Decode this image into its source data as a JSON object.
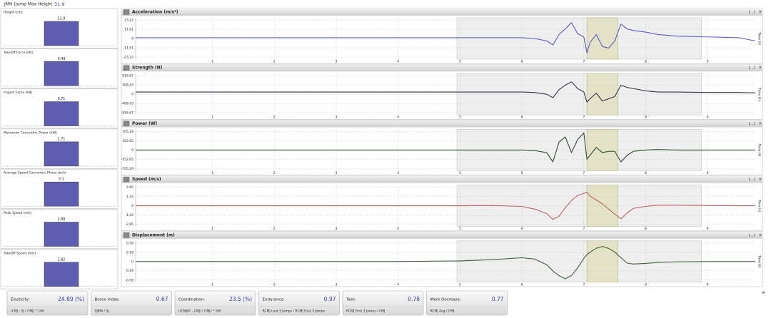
{
  "header": {
    "label": "JMH (Jump Max Height",
    "value": "31.9"
  },
  "summary": [
    {
      "label": "Height (cm)",
      "value": 31.9
    },
    {
      "label": "TakeOff Force (kN)",
      "value": 0.49
    },
    {
      "label": "Impact Force (kN)",
      "value": 0.71
    },
    {
      "label": "Maximum Concentric Power (kW)",
      "value": 2.71
    },
    {
      "label": "Average Speed Concentric Phase (m/s)",
      "value": 0.1
    },
    {
      "label": "Peak Speed (m/s)",
      "value": 2.88
    },
    {
      "label": "TakeOff Speed (m/s)",
      "value": 2.82
    }
  ],
  "panel_menu": "(...)",
  "chart_data": [
    {
      "type": "line",
      "title": "Acceleration (m/s²)",
      "x_label": "Time (t)",
      "x": [
        -0.24,
        1,
        2,
        3,
        4,
        5,
        5.5,
        6,
        6.2,
        6.4,
        6.5,
        6.6,
        6.7,
        6.8,
        6.9,
        7.0,
        7.05,
        7.1,
        7.2,
        7.3,
        7.4,
        7.5,
        7.6,
        7.7,
        7.8,
        8.0,
        8.2,
        8.5,
        9,
        9.5,
        9.77
      ],
      "values": [
        1,
        1,
        1,
        1,
        1,
        1,
        1,
        1,
        0,
        -3,
        -8,
        5,
        12,
        20,
        6,
        2,
        -18,
        -5,
        5,
        -10,
        -12,
        -3,
        18,
        12,
        10,
        8,
        5,
        3,
        2,
        1,
        -3
      ],
      "color": "#5b5bc8",
      "xlim": [
        -0.24,
        9.77
      ],
      "xticks": [
        1,
        2,
        3,
        4,
        5,
        6,
        7,
        8,
        9
      ],
      "ylim": [
        -23.22,
        23.22
      ],
      "yticks": [
        23.22,
        11.61,
        0,
        -11.61,
        -23.22
      ],
      "window": [
        4.95,
        8.9
      ],
      "highlight": [
        7.05,
        7.55
      ],
      "grid": true
    },
    {
      "type": "line",
      "title": "Strength (N)",
      "x_label": "Time (t)",
      "x": [
        -0.24,
        1,
        2,
        3,
        4,
        5,
        5.5,
        6,
        6.2,
        6.4,
        6.5,
        6.6,
        6.7,
        6.8,
        6.9,
        7.0,
        7.05,
        7.1,
        7.2,
        7.3,
        7.4,
        7.5,
        7.6,
        7.7,
        7.8,
        8.0,
        8.2,
        8.5,
        9,
        9.5,
        9.77
      ],
      "values": [
        100,
        100,
        100,
        100,
        100,
        100,
        100,
        100,
        80,
        0,
        -150,
        200,
        400,
        550,
        250,
        100,
        -350,
        -200,
        50,
        -300,
        -200,
        -100,
        400,
        300,
        250,
        150,
        100,
        100,
        80,
        80,
        60
      ],
      "color": "#3a3550",
      "xlim": [
        -0.24,
        9.77
      ],
      "xticks": [
        1,
        2,
        3,
        4,
        5,
        6,
        7,
        8,
        9
      ],
      "ylim": [
        -816.87,
        816.87
      ],
      "yticks": [
        816.87,
        408.43,
        0,
        -408.43,
        -816.87
      ],
      "window": [
        4.95,
        8.9
      ],
      "highlight": [
        7.05,
        7.55
      ],
      "grid": true
    },
    {
      "type": "line",
      "title": "Power (W)",
      "x_label": "Time (t)",
      "x": [
        -0.24,
        1,
        2,
        3,
        4,
        5,
        5.5,
        6,
        6.2,
        6.4,
        6.5,
        6.6,
        6.7,
        6.8,
        6.9,
        7.0,
        7.05,
        7.1,
        7.2,
        7.3,
        7.4,
        7.5,
        7.6,
        7.7,
        7.8,
        8.0,
        8.2,
        8.5,
        9,
        9.5,
        9.77
      ],
      "values": [
        0,
        0,
        0,
        0,
        0,
        0,
        0,
        0,
        -20,
        -100,
        -450,
        300,
        500,
        -100,
        400,
        650,
        -350,
        -200,
        100,
        -100,
        -50,
        -50,
        -450,
        -200,
        -50,
        0,
        20,
        0,
        0,
        0,
        0
      ],
      "color": "#2f4a2f",
      "xlim": [
        -0.24,
        9.77
      ],
      "xticks": [
        1,
        2,
        3,
        4,
        5,
        6,
        7,
        8,
        9
      ],
      "ylim": [
        -705.29,
        705.29
      ],
      "yticks": [
        705.29,
        352.65,
        0,
        -352.65,
        -705.29
      ],
      "window": [
        4.95,
        8.9
      ],
      "highlight": [
        7.05,
        7.55
      ],
      "grid": true
    },
    {
      "type": "line",
      "title": "Speed (m/s)",
      "x_label": "Time (t)",
      "x": [
        -0.24,
        1,
        2,
        3,
        4,
        5,
        5.5,
        6,
        6.2,
        6.4,
        6.5,
        6.6,
        6.7,
        6.8,
        6.9,
        7.0,
        7.05,
        7.1,
        7.2,
        7.3,
        7.4,
        7.5,
        7.6,
        7.7,
        7.8,
        8.0,
        8.2,
        8.5,
        9,
        9.5,
        9.77
      ],
      "values": [
        0,
        0,
        0,
        0,
        0,
        0,
        0.05,
        -0.1,
        -0.5,
        -1.2,
        -2.1,
        -1.6,
        -0.3,
        0.8,
        1.6,
        1.9,
        2.1,
        1.5,
        0.9,
        0.3,
        -0.5,
        -1.3,
        -2.0,
        -1.1,
        -0.4,
        -0.1,
        0.1,
        0.1,
        0.05,
        0,
        0
      ],
      "color": "#c06060",
      "xlim": [
        -0.24,
        9.77
      ],
      "xticks": [
        1,
        2,
        3,
        4,
        5,
        6,
        7,
        8,
        9
      ],
      "ylim": [
        -2.85,
        2.85
      ],
      "yticks": [
        2.85,
        1.42,
        0,
        -1.42,
        -2.85
      ],
      "window": [
        4.95,
        8.9
      ],
      "highlight": [
        7.05,
        7.55
      ],
      "grid": true
    },
    {
      "type": "line",
      "title": "Displacement (m)",
      "x_label": "Time (t)",
      "x": [
        -0.24,
        1,
        2,
        3,
        4,
        5,
        5.5,
        6,
        6.2,
        6.4,
        6.5,
        6.6,
        6.7,
        6.8,
        6.9,
        7.0,
        7.05,
        7.1,
        7.2,
        7.3,
        7.4,
        7.5,
        7.6,
        7.7,
        7.8,
        8.0,
        8.2,
        8.5,
        9,
        9.5,
        9.77
      ],
      "values": [
        0,
        0,
        0,
        0,
        0,
        0.02,
        0.06,
        0.12,
        0.08,
        -0.1,
        -0.3,
        -0.45,
        -0.55,
        -0.45,
        -0.2,
        0.1,
        0.22,
        0.3,
        0.42,
        0.48,
        0.42,
        0.3,
        0.12,
        -0.05,
        -0.08,
        -0.06,
        -0.03,
        -0.01,
        0,
        0,
        0
      ],
      "color": "#3d5e3d",
      "xlim": [
        -0.24,
        9.77
      ],
      "xticks": [
        1,
        2,
        3,
        4,
        5,
        6,
        7,
        8,
        9
      ],
      "ylim": [
        -0.59,
        0.59
      ],
      "yticks": [
        0.59,
        0.29,
        0,
        -0.29,
        -0.59
      ],
      "window": [
        4.95,
        8.9
      ],
      "highlight": [
        7.05,
        7.55
      ],
      "grid": true
    }
  ],
  "metrics": [
    {
      "label": "Elasticity:",
      "value": "24.89 (%)",
      "formula": "(CMJ - SJ / CMJ) * 100"
    },
    {
      "label": "Bosco Index:",
      "value": "0.67",
      "formula": "SJBW / SJ"
    },
    {
      "label": "Coordination:",
      "value": "23.5 (%)",
      "formula": "((CMJAT - CMJ) / CMJ) * 100"
    },
    {
      "label": "Endurance:",
      "value": "0.97",
      "formula": "RCMJ Last 3 Jumps / RCMJ First 3 Jumps"
    },
    {
      "label": "Task:",
      "value": "0.78",
      "formula": "RCMJ First 3 Jumps / CMJ"
    },
    {
      "label": "Work Decrease:",
      "value": "0.77",
      "formula": "RCMJ Avg / CMJ"
    }
  ]
}
